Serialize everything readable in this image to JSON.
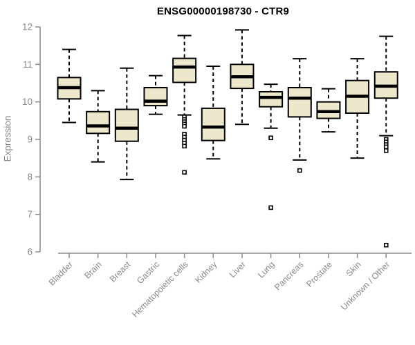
{
  "chart_data": {
    "type": "boxplot",
    "title": "ENSG00000198730 - CTR9",
    "xlabel": "",
    "ylabel": "Expression",
    "ylim": [
      6,
      12
    ],
    "yticks": [
      6,
      7,
      8,
      9,
      10,
      11,
      12
    ],
    "grid": false,
    "legend": "none",
    "categories": [
      "Bladder",
      "Brain",
      "Breast",
      "Gastric",
      "Hematopoietic cells",
      "Kidney",
      "Liver",
      "Lung",
      "Pancreas",
      "Prostate",
      "Skin",
      "Unknown / Other"
    ],
    "series": [
      {
        "name": "Bladder",
        "low": 9.45,
        "q1": 10.08,
        "median": 10.38,
        "q3": 10.65,
        "high": 11.4,
        "outliers": []
      },
      {
        "name": "Brain",
        "low": 8.4,
        "q1": 9.16,
        "median": 9.36,
        "q3": 9.74,
        "high": 10.3,
        "outliers": []
      },
      {
        "name": "Breast",
        "low": 7.93,
        "q1": 8.95,
        "median": 9.3,
        "q3": 9.8,
        "high": 10.9,
        "outliers": []
      },
      {
        "name": "Gastric",
        "low": 9.67,
        "q1": 9.9,
        "median": 10.02,
        "q3": 10.38,
        "high": 10.7,
        "outliers": []
      },
      {
        "name": "Hematopoietic cells",
        "low": 9.65,
        "q1": 10.52,
        "median": 10.93,
        "q3": 11.16,
        "high": 11.77,
        "outliers": [
          9.6,
          9.53,
          9.47,
          9.41,
          9.35,
          9.14,
          9.06,
          8.98,
          8.9,
          8.82,
          8.12
        ]
      },
      {
        "name": "Kidney",
        "low": 8.48,
        "q1": 8.97,
        "median": 9.33,
        "q3": 9.83,
        "high": 10.95,
        "outliers": []
      },
      {
        "name": "Liver",
        "low": 9.4,
        "q1": 10.36,
        "median": 10.67,
        "q3": 11.0,
        "high": 11.92,
        "outliers": []
      },
      {
        "name": "Lung",
        "low": 9.3,
        "q1": 9.87,
        "median": 10.12,
        "q3": 10.27,
        "high": 10.47,
        "outliers": [
          9.04,
          7.18
        ]
      },
      {
        "name": "Pancreas",
        "low": 8.45,
        "q1": 9.6,
        "median": 10.1,
        "q3": 10.38,
        "high": 11.15,
        "outliers": [
          8.17
        ]
      },
      {
        "name": "Prostate",
        "low": 9.2,
        "q1": 9.56,
        "median": 9.74,
        "q3": 10.0,
        "high": 10.35,
        "outliers": []
      },
      {
        "name": "Skin",
        "low": 8.5,
        "q1": 9.7,
        "median": 10.15,
        "q3": 10.57,
        "high": 11.15,
        "outliers": []
      },
      {
        "name": "Unknown / Other",
        "low": 9.1,
        "q1": 10.1,
        "median": 10.42,
        "q3": 10.8,
        "high": 11.75,
        "outliers": [
          9.0,
          8.93,
          8.86,
          8.8,
          8.7,
          6.18
        ]
      }
    ],
    "colors": {
      "box_fill": "#EDE7CC",
      "box_border": "#000000",
      "median": "#000000",
      "whisker": "#000000",
      "outlier_border": "#000000",
      "axis": "#8a8a8a",
      "tick_label": "#8a8a8a",
      "title": "#000000",
      "background": "#ffffff"
    }
  }
}
